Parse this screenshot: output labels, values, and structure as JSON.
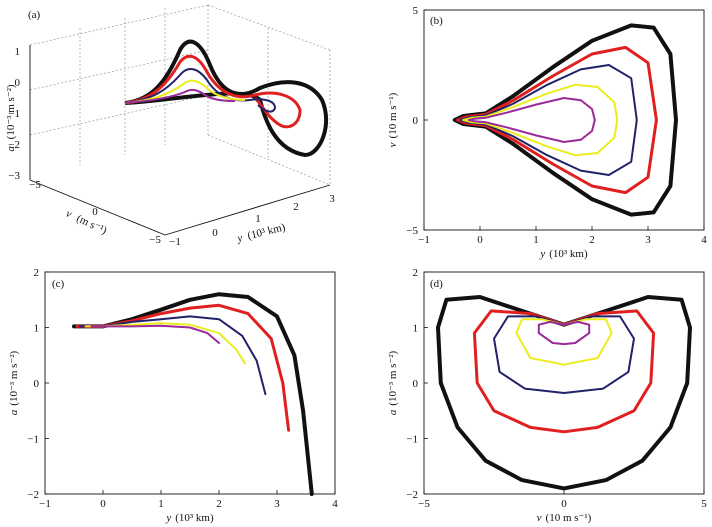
{
  "palette": {
    "black": "#111111",
    "red": "#e02020",
    "navy": "#22226b",
    "yellow": "#ecec1e",
    "purple": "#9a2a9a"
  },
  "chart_data": [
    {
      "id": "a",
      "type": "line3d",
      "label": "(a)",
      "zlabel_var": "a",
      "zlabel_unit": "(10⁻³ m s⁻²)",
      "xlabel_var": "y",
      "xlabel_unit": "(10³ km)",
      "ylabel_var": "v",
      "ylabel_unit": "(m s⁻¹)",
      "zticks": [
        "1",
        "0",
        "−1",
        "−2",
        "−3"
      ],
      "xticks": [
        "−1",
        "0",
        "1",
        "2",
        "3"
      ],
      "yticks": [
        "−5",
        "0",
        "−5"
      ]
    },
    {
      "id": "b",
      "type": "line",
      "label": "(b)",
      "xlabel_var": "y",
      "xlabel_unit": "(10³ km)",
      "ylabel_var": "v",
      "ylabel_unit": "(10 m s⁻¹)",
      "xlim": [
        -1,
        4
      ],
      "ylim": [
        -5,
        5
      ],
      "xticks": [
        "−1",
        "0",
        "1",
        "2",
        "3",
        "4"
      ],
      "yticks": [
        "−5",
        "0",
        "5"
      ],
      "series": [
        {
          "name": "black",
          "values": [
            [
              -0.45,
              0
            ],
            [
              -0.3,
              0.18
            ],
            [
              0.1,
              0.3
            ],
            [
              0.6,
              1.1
            ],
            [
              1.3,
              2.4
            ],
            [
              2.0,
              3.6
            ],
            [
              2.7,
              4.3
            ],
            [
              3.1,
              4.2
            ],
            [
              3.4,
              3.0
            ],
            [
              3.5,
              0
            ],
            [
              3.4,
              -3.0
            ],
            [
              3.1,
              -4.2
            ],
            [
              2.7,
              -4.3
            ],
            [
              2.0,
              -3.6
            ],
            [
              1.3,
              -2.4
            ],
            [
              0.6,
              -1.1
            ],
            [
              0.1,
              -0.3
            ],
            [
              -0.3,
              -0.18
            ],
            [
              -0.45,
              0
            ]
          ]
        },
        {
          "name": "red",
          "values": [
            [
              -0.4,
              0
            ],
            [
              -0.25,
              0.14
            ],
            [
              0.1,
              0.25
            ],
            [
              0.6,
              0.9
            ],
            [
              1.3,
              2.0
            ],
            [
              2.0,
              3.0
            ],
            [
              2.6,
              3.3
            ],
            [
              3.0,
              2.6
            ],
            [
              3.15,
              0
            ],
            [
              3.0,
              -2.6
            ],
            [
              2.6,
              -3.3
            ],
            [
              2.0,
              -3.0
            ],
            [
              1.3,
              -2.0
            ],
            [
              0.6,
              -0.9
            ],
            [
              0.1,
              -0.25
            ],
            [
              -0.25,
              -0.14
            ],
            [
              -0.4,
              0
            ]
          ]
        },
        {
          "name": "navy",
          "values": [
            [
              -0.35,
              0
            ],
            [
              -0.2,
              0.12
            ],
            [
              0.1,
              0.2
            ],
            [
              0.6,
              0.75
            ],
            [
              1.2,
              1.6
            ],
            [
              1.8,
              2.3
            ],
            [
              2.3,
              2.5
            ],
            [
              2.7,
              1.9
            ],
            [
              2.8,
              0
            ],
            [
              2.7,
              -1.9
            ],
            [
              2.3,
              -2.5
            ],
            [
              1.8,
              -2.3
            ],
            [
              1.2,
              -1.6
            ],
            [
              0.6,
              -0.75
            ],
            [
              0.1,
              -0.2
            ],
            [
              -0.2,
              -0.12
            ],
            [
              -0.35,
              0
            ]
          ]
        },
        {
          "name": "yellow",
          "values": [
            [
              -0.3,
              0
            ],
            [
              -0.15,
              0.1
            ],
            [
              0.1,
              0.15
            ],
            [
              0.6,
              0.6
            ],
            [
              1.2,
              1.2
            ],
            [
              1.7,
              1.6
            ],
            [
              2.1,
              1.5
            ],
            [
              2.4,
              0.8
            ],
            [
              2.45,
              0
            ],
            [
              2.4,
              -0.8
            ],
            [
              2.1,
              -1.5
            ],
            [
              1.7,
              -1.6
            ],
            [
              1.2,
              -1.2
            ],
            [
              0.6,
              -0.6
            ],
            [
              0.1,
              -0.15
            ],
            [
              -0.15,
              -0.1
            ],
            [
              -0.3,
              0
            ]
          ]
        },
        {
          "name": "purple",
          "values": [
            [
              -0.2,
              0
            ],
            [
              -0.1,
              0.06
            ],
            [
              0.1,
              0.1
            ],
            [
              0.5,
              0.35
            ],
            [
              1.0,
              0.7
            ],
            [
              1.5,
              1.0
            ],
            [
              1.8,
              0.9
            ],
            [
              2.0,
              0.5
            ],
            [
              2.05,
              0
            ],
            [
              2.0,
              -0.5
            ],
            [
              1.8,
              -0.9
            ],
            [
              1.5,
              -1.0
            ],
            [
              1.0,
              -0.7
            ],
            [
              0.5,
              -0.35
            ],
            [
              0.1,
              -0.1
            ],
            [
              -0.1,
              -0.06
            ],
            [
              -0.2,
              0
            ]
          ]
        }
      ]
    },
    {
      "id": "c",
      "type": "line",
      "label": "(c)",
      "xlabel_var": "y",
      "xlabel_unit": "(10³ km)",
      "ylabel_var": "a",
      "ylabel_unit": "(10⁻³ m s⁻²)",
      "xlim": [
        -1,
        4
      ],
      "ylim": [
        -2,
        2
      ],
      "xticks": [
        "−1",
        "0",
        "1",
        "2",
        "3",
        "4"
      ],
      "yticks": [
        "2",
        "1",
        "0",
        "−1",
        "−2"
      ],
      "series": [
        {
          "name": "black",
          "values": [
            [
              -0.5,
              1.02
            ],
            [
              0.0,
              1.02
            ],
            [
              0.5,
              1.15
            ],
            [
              1.0,
              1.32
            ],
            [
              1.5,
              1.5
            ],
            [
              2.0,
              1.6
            ],
            [
              2.5,
              1.55
            ],
            [
              3.0,
              1.2
            ],
            [
              3.3,
              0.5
            ],
            [
              3.45,
              -0.5
            ],
            [
              3.55,
              -1.5
            ],
            [
              3.6,
              -2.0
            ]
          ]
        },
        {
          "name": "red",
          "values": [
            [
              -0.45,
              1.02
            ],
            [
              0.0,
              1.02
            ],
            [
              0.5,
              1.12
            ],
            [
              1.0,
              1.25
            ],
            [
              1.5,
              1.35
            ],
            [
              2.0,
              1.4
            ],
            [
              2.5,
              1.25
            ],
            [
              2.9,
              0.8
            ],
            [
              3.1,
              0.0
            ],
            [
              3.2,
              -0.85
            ]
          ]
        },
        {
          "name": "navy",
          "values": [
            [
              -0.4,
              1.02
            ],
            [
              0.0,
              1.02
            ],
            [
              0.5,
              1.1
            ],
            [
              1.0,
              1.15
            ],
            [
              1.5,
              1.2
            ],
            [
              2.0,
              1.15
            ],
            [
              2.4,
              0.85
            ],
            [
              2.65,
              0.4
            ],
            [
              2.8,
              -0.2
            ]
          ]
        },
        {
          "name": "yellow",
          "values": [
            [
              -0.3,
              1.02
            ],
            [
              0.0,
              1.02
            ],
            [
              0.5,
              1.05
            ],
            [
              1.0,
              1.08
            ],
            [
              1.5,
              1.05
            ],
            [
              2.0,
              0.9
            ],
            [
              2.3,
              0.6
            ],
            [
              2.45,
              0.35
            ]
          ]
        },
        {
          "name": "purple",
          "values": [
            [
              -0.2,
              1.02
            ],
            [
              0.0,
              1.02
            ],
            [
              0.5,
              1.02
            ],
            [
              1.0,
              1.03
            ],
            [
              1.5,
              1.0
            ],
            [
              1.8,
              0.9
            ],
            [
              2.0,
              0.72
            ]
          ]
        }
      ]
    },
    {
      "id": "d",
      "type": "line",
      "label": "(d)",
      "xlabel_var": "v",
      "xlabel_unit": "(10 m s⁻¹)",
      "ylabel_var": "a",
      "ylabel_unit": "(10⁻³ m s⁻²)",
      "xlim": [
        -5,
        5
      ],
      "ylim": [
        -2,
        2
      ],
      "xticks": [
        "−5",
        "0",
        "5"
      ],
      "yticks": [
        "2",
        "1",
        "0",
        "−1",
        "−2"
      ],
      "series": [
        {
          "name": "black",
          "values": [
            [
              0,
              1.05
            ],
            [
              -1.5,
              1.3
            ],
            [
              -3.0,
              1.55
            ],
            [
              -4.2,
              1.5
            ],
            [
              -4.5,
              1.0
            ],
            [
              -4.4,
              0.0
            ],
            [
              -3.8,
              -0.8
            ],
            [
              -2.8,
              -1.4
            ],
            [
              -1.5,
              -1.75
            ],
            [
              0,
              -1.9
            ],
            [
              1.5,
              -1.75
            ],
            [
              2.8,
              -1.4
            ],
            [
              3.8,
              -0.8
            ],
            [
              4.4,
              0.0
            ],
            [
              4.5,
              1.0
            ],
            [
              4.2,
              1.5
            ],
            [
              3.0,
              1.55
            ],
            [
              1.5,
              1.3
            ],
            [
              0,
              1.05
            ]
          ]
        },
        {
          "name": "red",
          "values": [
            [
              0,
              1.05
            ],
            [
              -1.2,
              1.25
            ],
            [
              -2.6,
              1.3
            ],
            [
              -3.2,
              0.9
            ],
            [
              -3.1,
              0.0
            ],
            [
              -2.5,
              -0.5
            ],
            [
              -1.2,
              -0.8
            ],
            [
              0,
              -0.88
            ],
            [
              1.2,
              -0.8
            ],
            [
              2.5,
              -0.5
            ],
            [
              3.1,
              0.0
            ],
            [
              3.2,
              0.9
            ],
            [
              2.6,
              1.3
            ],
            [
              1.2,
              1.25
            ],
            [
              0,
              1.05
            ]
          ]
        },
        {
          "name": "navy",
          "values": [
            [
              0,
              1.05
            ],
            [
              -1.0,
              1.2
            ],
            [
              -2.0,
              1.2
            ],
            [
              -2.5,
              0.8
            ],
            [
              -2.3,
              0.2
            ],
            [
              -1.4,
              -0.1
            ],
            [
              0,
              -0.18
            ],
            [
              1.4,
              -0.1
            ],
            [
              2.3,
              0.2
            ],
            [
              2.5,
              0.8
            ],
            [
              2.0,
              1.2
            ],
            [
              1.0,
              1.2
            ],
            [
              0,
              1.05
            ]
          ]
        },
        {
          "name": "yellow",
          "values": [
            [
              0,
              1.05
            ],
            [
              -0.8,
              1.15
            ],
            [
              -1.5,
              1.15
            ],
            [
              -1.7,
              0.9
            ],
            [
              -1.2,
              0.45
            ],
            [
              0,
              0.33
            ],
            [
              1.2,
              0.45
            ],
            [
              1.7,
              0.9
            ],
            [
              1.5,
              1.15
            ],
            [
              0.8,
              1.15
            ],
            [
              0,
              1.05
            ]
          ]
        },
        {
          "name": "purple",
          "values": [
            [
              0,
              1.05
            ],
            [
              -0.5,
              1.1
            ],
            [
              -0.9,
              1.05
            ],
            [
              -0.9,
              0.9
            ],
            [
              -0.4,
              0.72
            ],
            [
              0,
              0.7
            ],
            [
              0.4,
              0.72
            ],
            [
              0.9,
              0.9
            ],
            [
              0.9,
              1.05
            ],
            [
              0.5,
              1.1
            ],
            [
              0,
              1.05
            ]
          ]
        }
      ]
    }
  ]
}
